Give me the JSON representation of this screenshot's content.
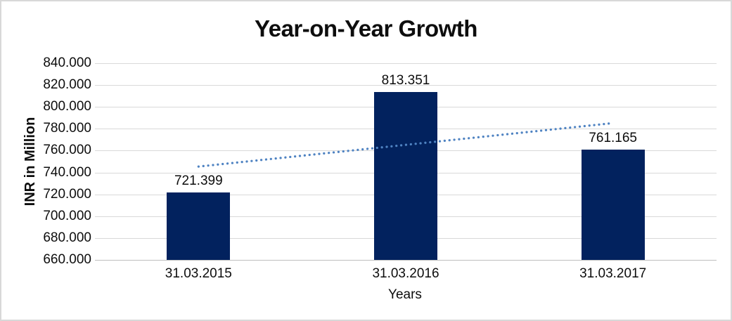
{
  "chart_data": {
    "type": "bar",
    "title": "Year-on-Year Growth",
    "xlabel": "Years",
    "ylabel": "INR in Million",
    "categories": [
      "31.03.2015",
      "31.03.2016",
      "31.03.2017"
    ],
    "values": [
      721.399,
      813.351,
      761.165
    ],
    "data_labels": [
      "721.399",
      "813.351",
      "761.165"
    ],
    "ylim": [
      660,
      840
    ],
    "ytick_step": 20,
    "ytick_labels": [
      "660.000",
      "680.000",
      "700.000",
      "720.000",
      "740.000",
      "760.000",
      "780.000",
      "800.000",
      "820.000",
      "840.000"
    ],
    "grid": true,
    "legend": "none",
    "trendline": {
      "type": "linear",
      "style": "dotted"
    },
    "colors": {
      "bar": "#02225E",
      "trendline": "#4F83C2",
      "gridline": "#D9D9D9",
      "axis_line": "#BFBFBF",
      "text": "#0D0D0D",
      "border": "#D8D8D8"
    }
  }
}
